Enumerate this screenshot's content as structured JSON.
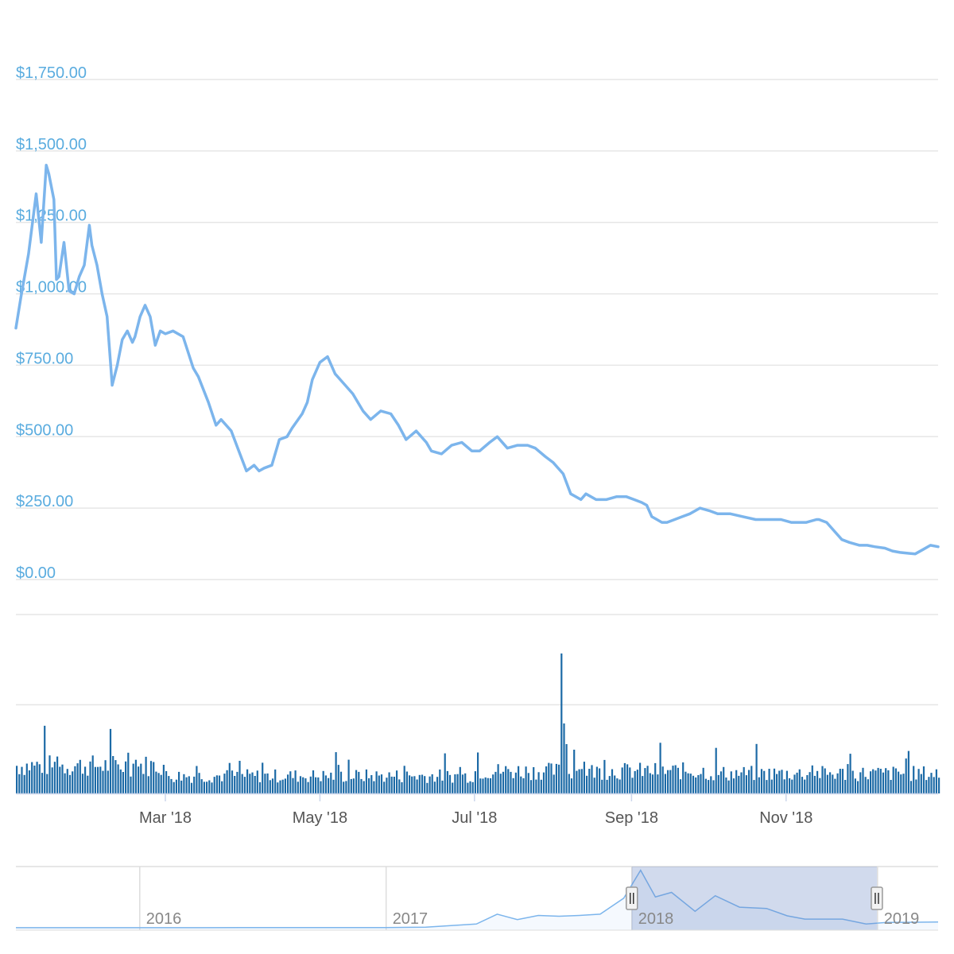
{
  "chart_data": {
    "type": "line",
    "title": "",
    "xlabel": "",
    "ylabel": "",
    "price_axis": {
      "ticks": [
        0,
        250,
        500,
        750,
        1000,
        1250,
        1500,
        1750
      ],
      "tick_labels": [
        "$0.00",
        "$250.00",
        "$500.00",
        "$750.00",
        "$1,000.00",
        "$1,250.00",
        "$1,500.00",
        "$1,750.00"
      ],
      "ylim": [
        0,
        1750
      ],
      "grid": true
    },
    "time_axis": {
      "range": [
        "2018-01-01",
        "2018-12-31"
      ],
      "ticks": [
        "2018-03-01",
        "2018-05-01",
        "2018-07-01",
        "2018-09-01",
        "2018-11-01"
      ],
      "tick_labels": [
        "Mar '18",
        "May '18",
        "Jul '18",
        "Sep '18",
        "Nov '18"
      ]
    },
    "series": [
      {
        "color": "#7cb5ec",
        "x": [
          "2018-01-01",
          "2018-01-03",
          "2018-01-06",
          "2018-01-09",
          "2018-01-11",
          "2018-01-13",
          "2018-01-14",
          "2018-01-16",
          "2018-01-17",
          "2018-01-18",
          "2018-01-20",
          "2018-01-22",
          "2018-01-24",
          "2018-01-26",
          "2018-01-28",
          "2018-01-30",
          "2018-01-31",
          "2018-02-02",
          "2018-02-04",
          "2018-02-06",
          "2018-02-08",
          "2018-02-10",
          "2018-02-12",
          "2018-02-14",
          "2018-02-16",
          "2018-02-17",
          "2018-02-19",
          "2018-02-21",
          "2018-02-23",
          "2018-02-25",
          "2018-02-27",
          "2018-03-01",
          "2018-03-04",
          "2018-03-08",
          "2018-03-12",
          "2018-03-14",
          "2018-03-18",
          "2018-03-21",
          "2018-03-23",
          "2018-03-27",
          "2018-03-30",
          "2018-04-02",
          "2018-04-05",
          "2018-04-07",
          "2018-04-09",
          "2018-04-12",
          "2018-04-15",
          "2018-04-18",
          "2018-04-20",
          "2018-04-24",
          "2018-04-26",
          "2018-04-28",
          "2018-05-01",
          "2018-05-04",
          "2018-05-07",
          "2018-05-10",
          "2018-05-14",
          "2018-05-18",
          "2018-05-21",
          "2018-05-25",
          "2018-05-29",
          "2018-06-01",
          "2018-06-04",
          "2018-06-08",
          "2018-06-12",
          "2018-06-14",
          "2018-06-18",
          "2018-06-22",
          "2018-06-26",
          "2018-06-30",
          "2018-07-03",
          "2018-07-07",
          "2018-07-10",
          "2018-07-14",
          "2018-07-18",
          "2018-07-22",
          "2018-07-25",
          "2018-07-29",
          "2018-08-01",
          "2018-08-05",
          "2018-08-08",
          "2018-08-12",
          "2018-08-14",
          "2018-08-18",
          "2018-08-22",
          "2018-08-26",
          "2018-08-30",
          "2018-09-02",
          "2018-09-05",
          "2018-09-07",
          "2018-09-09",
          "2018-09-11",
          "2018-09-13",
          "2018-09-15",
          "2018-09-18",
          "2018-09-21",
          "2018-09-24",
          "2018-09-28",
          "2018-10-02",
          "2018-10-05",
          "2018-10-07",
          "2018-10-10",
          "2018-10-15",
          "2018-10-20",
          "2018-10-25",
          "2018-10-30",
          "2018-11-03",
          "2018-11-06",
          "2018-11-09",
          "2018-11-13",
          "2018-11-14",
          "2018-11-17",
          "2018-11-20",
          "2018-11-23",
          "2018-11-26",
          "2018-11-30",
          "2018-12-03",
          "2018-12-06",
          "2018-12-10",
          "2018-12-13",
          "2018-12-16",
          "2018-12-19",
          "2018-12-22",
          "2018-12-25",
          "2018-12-28",
          "2018-12-31"
        ],
        "values": [
          880,
          990,
          1140,
          1350,
          1180,
          1450,
          1420,
          1330,
          1050,
          1060,
          1180,
          1010,
          1000,
          1060,
          1100,
          1240,
          1170,
          1100,
          1000,
          920,
          680,
          750,
          840,
          870,
          830,
          850,
          920,
          960,
          920,
          820,
          870,
          860,
          870,
          850,
          740,
          710,
          620,
          540,
          560,
          520,
          450,
          380,
          400,
          380,
          390,
          400,
          490,
          500,
          530,
          580,
          620,
          700,
          760,
          780,
          720,
          690,
          650,
          590,
          560,
          590,
          580,
          540,
          490,
          520,
          480,
          450,
          440,
          470,
          480,
          450,
          450,
          480,
          500,
          460,
          470,
          470,
          460,
          430,
          410,
          370,
          300,
          280,
          300,
          280,
          280,
          290,
          290,
          280,
          270,
          260,
          220,
          210,
          200,
          200,
          210,
          220,
          230,
          250,
          240,
          230,
          230,
          230,
          220,
          210,
          210,
          210,
          200,
          200,
          200,
          210,
          210,
          200,
          170,
          140,
          130,
          120,
          120,
          115,
          110,
          100,
          95,
          92,
          90,
          105,
          120,
          115
        ]
      }
    ],
    "volume": {
      "spike_date": "2018-08-04",
      "grid": true
    },
    "navigator": {
      "tick_labels": [
        "2016",
        "2017",
        "2018",
        "2019"
      ],
      "selected_range": [
        "2018-01-01",
        "2018-12-31"
      ]
    }
  }
}
